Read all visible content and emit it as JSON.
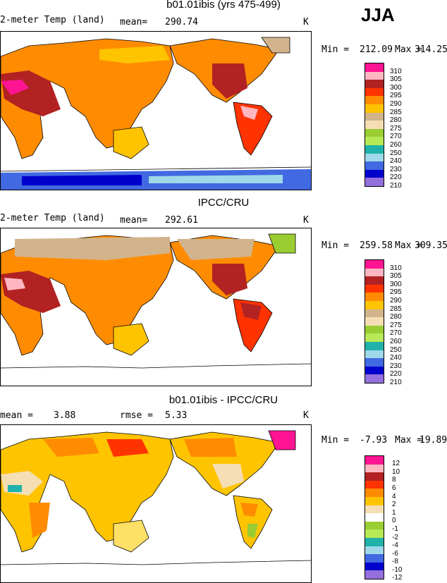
{
  "season": "JJA",
  "panels": [
    {
      "title": "b01.01ibis (yrs 475-499)",
      "left_label": "2-meter Temp (land)",
      "stat_label": "mean=",
      "stat_value": "290.74",
      "units": "K",
      "min_label": "Min =",
      "min_value": "212.09",
      "max_label": "Max =",
      "max_value": "314.25",
      "colorbar_labels": [
        "310",
        "305",
        "300",
        "295",
        "290",
        "285",
        "280",
        "275",
        "270",
        "260",
        "250",
        "240",
        "230",
        "220",
        "210"
      ],
      "colors": [
        "#ff1493",
        "#ffb6c1",
        "#b22222",
        "#ff3300",
        "#ff8c00",
        "#ffc400",
        "#ffe066",
        "#d2b48c",
        "#f5deb3",
        "#9acd32",
        "#b7e856",
        "#20b2aa",
        "#9fd8e8",
        "#4169e1",
        "#0000cd",
        "#9370db"
      ]
    },
    {
      "title": "IPCC/CRU",
      "left_label": "2-meter Temp (land)",
      "stat_label": "mean=",
      "stat_value": "292.61",
      "units": "K",
      "min_label": "Min =",
      "min_value": "259.58",
      "max_label": "Max =",
      "max_value": "309.35",
      "colorbar_labels": [
        "310",
        "305",
        "300",
        "295",
        "290",
        "285",
        "280",
        "275",
        "270",
        "260",
        "250",
        "240",
        "230",
        "220",
        "210"
      ],
      "colors": [
        "#ff1493",
        "#ffb6c1",
        "#b22222",
        "#ff3300",
        "#ff8c00",
        "#ffc400",
        "#ffe066",
        "#d2b48c",
        "#f5deb3",
        "#9acd32",
        "#b7e856",
        "#20b2aa",
        "#9fd8e8",
        "#4169e1",
        "#0000cd",
        "#9370db"
      ]
    },
    {
      "title": "b01.01ibis - IPCC/CRU",
      "left_label": "mean =",
      "left_value": "3.88",
      "stat_label": "rmse =",
      "stat_value": "5.33",
      "units": "K",
      "min_label": "Min =",
      "min_value": "-7.93",
      "max_label": "Max =",
      "max_value": "19.89",
      "colorbar_labels": [
        "12",
        "10",
        "8",
        "6",
        "4",
        "2",
        "1",
        "0",
        "-1",
        "-2",
        "-4",
        "-6",
        "-8",
        "-10",
        "-12"
      ],
      "colors": [
        "#ff1493",
        "#ffb6c1",
        "#b22222",
        "#ff3300",
        "#ff8c00",
        "#ffc400",
        "#ffe066",
        "#f5deb3",
        "#9acd32",
        "#b7e856",
        "#20b2aa",
        "#9fd8e8",
        "#87aee8",
        "#4169e1",
        "#0000cd",
        "#9370db"
      ]
    }
  ]
}
